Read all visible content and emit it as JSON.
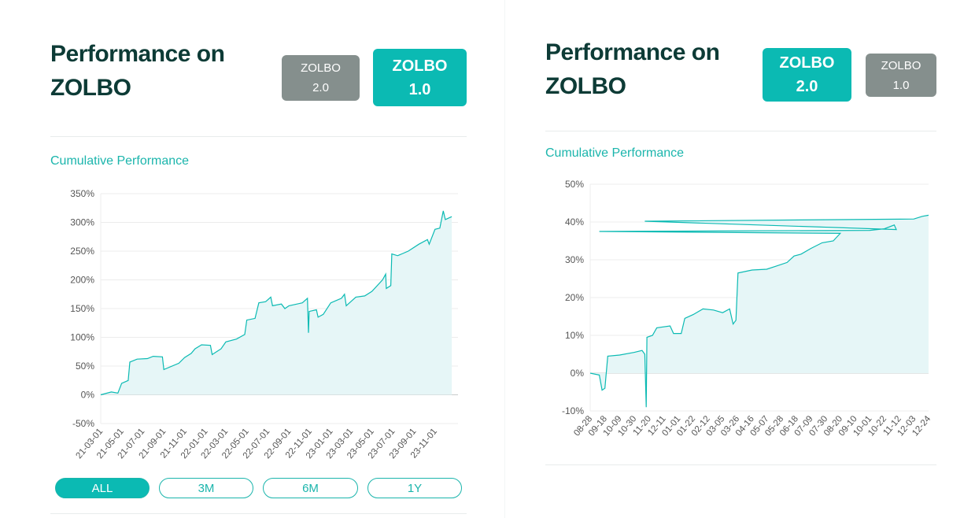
{
  "colors": {
    "accent": "#0bbab3",
    "inactive": "#858f8d",
    "title": "#0d3b36",
    "fill": "#e6f6f7"
  },
  "left": {
    "title_line1": "Performance on",
    "title_line2": "ZOLBO",
    "buttons": [
      {
        "line1": "ZOLBO",
        "line2": "2.0",
        "active": false
      },
      {
        "line1": "ZOLBO",
        "line2": "1.0",
        "active": true
      }
    ],
    "subtitle": "Cumulative Performance",
    "ranges": [
      {
        "label": "ALL",
        "active": true
      },
      {
        "label": "3M",
        "active": false
      },
      {
        "label": "6M",
        "active": false
      },
      {
        "label": "1Y",
        "active": false
      }
    ]
  },
  "right": {
    "title_line1": "Performance on",
    "title_line2": "ZOLBO",
    "buttons": [
      {
        "line1": "ZOLBO",
        "line2": "2.0",
        "active": true
      },
      {
        "line1": "ZOLBO",
        "line2": "1.0",
        "active": false
      }
    ],
    "subtitle": "Cumulative Performance"
  },
  "chart_data": [
    {
      "type": "area",
      "ylim": [
        -50,
        350
      ],
      "yticks": [
        "350%",
        "300%",
        "250%",
        "200%",
        "150%",
        "100%",
        "50%",
        "0%",
        "-50%"
      ],
      "ytick_values": [
        350,
        300,
        250,
        200,
        150,
        100,
        50,
        0,
        -50
      ],
      "xticks": [
        "21-03-01",
        "21-05-01",
        "21-07-01",
        "21-09-01",
        "21-11-01",
        "22-01-01",
        "22-03-01",
        "22-05-01",
        "22-07-01",
        "22-09-01",
        "22-11-01",
        "23-01-01",
        "23-03-01",
        "23-05-01",
        "23-07-01",
        "23-09-01",
        "23-11-01"
      ],
      "x_end": "23-12-20",
      "grid": true,
      "points": [
        [
          "21-03-01",
          0
        ],
        [
          "21-04-01",
          5
        ],
        [
          "21-04-20",
          3
        ],
        [
          "21-05-01",
          20
        ],
        [
          "21-05-20",
          25
        ],
        [
          "21-05-25",
          57
        ],
        [
          "21-06-15",
          62
        ],
        [
          "21-07-15",
          63
        ],
        [
          "21-08-01",
          67
        ],
        [
          "21-08-28",
          66
        ],
        [
          "21-09-01",
          44
        ],
        [
          "21-10-15",
          55
        ],
        [
          "21-11-01",
          65
        ],
        [
          "21-11-20",
          72
        ],
        [
          "21-12-01",
          80
        ],
        [
          "21-12-20",
          87
        ],
        [
          "22-01-15",
          86
        ],
        [
          "22-01-20",
          70
        ],
        [
          "22-02-15",
          80
        ],
        [
          "22-03-01",
          92
        ],
        [
          "22-04-01",
          97
        ],
        [
          "22-04-25",
          105
        ],
        [
          "22-05-01",
          130
        ],
        [
          "22-05-25",
          133
        ],
        [
          "22-06-05",
          160
        ],
        [
          "22-06-25",
          162
        ],
        [
          "22-07-10",
          170
        ],
        [
          "22-07-15",
          155
        ],
        [
          "22-08-10",
          158
        ],
        [
          "22-08-20",
          150
        ],
        [
          "22-09-01",
          155
        ],
        [
          "22-10-10",
          160
        ],
        [
          "22-10-25",
          168
        ],
        [
          "22-10-28",
          108
        ],
        [
          "22-10-30",
          145
        ],
        [
          "22-11-20",
          148
        ],
        [
          "22-11-25",
          135
        ],
        [
          "22-12-10",
          140
        ],
        [
          "23-01-01",
          160
        ],
        [
          "23-02-01",
          168
        ],
        [
          "23-02-10",
          175
        ],
        [
          "23-02-15",
          155
        ],
        [
          "23-03-15",
          170
        ],
        [
          "23-04-10",
          172
        ],
        [
          "23-05-01",
          180
        ],
        [
          "23-06-01",
          200
        ],
        [
          "23-06-10",
          210
        ],
        [
          "23-06-12",
          185
        ],
        [
          "23-06-25",
          190
        ],
        [
          "23-06-28",
          245
        ],
        [
          "23-07-15",
          242
        ],
        [
          "23-08-15",
          250
        ],
        [
          "23-09-15",
          262
        ],
        [
          "23-10-10",
          270
        ],
        [
          "23-10-15",
          262
        ],
        [
          "23-11-01",
          288
        ],
        [
          "23-11-15",
          290
        ],
        [
          "23-11-25",
          320
        ],
        [
          "23-12-01",
          305
        ],
        [
          "23-12-20",
          310
        ]
      ]
    },
    {
      "type": "area",
      "ylim": [
        -10,
        50
      ],
      "yticks": [
        "50%",
        "40%",
        "30%",
        "20%",
        "10%",
        "0%",
        "-10%"
      ],
      "ytick_values": [
        50,
        40,
        30,
        20,
        10,
        0,
        -10
      ],
      "xticks": [
        "08-28",
        "09-18",
        "10-09",
        "10-30",
        "11-20",
        "12-11",
        "01-01",
        "01-22",
        "02-12",
        "03-05",
        "03-26",
        "04-16",
        "05-07",
        "05-28",
        "06-18",
        "07-09",
        "07-30",
        "08-20",
        "09-10",
        "10-01",
        "10-22",
        "11-12",
        "12-03",
        "12-24"
      ],
      "grid": true,
      "points": [
        [
          "08-28",
          0
        ],
        [
          "09-10",
          -0.5
        ],
        [
          "09-14",
          -4.5
        ],
        [
          "09-18",
          -4
        ],
        [
          "09-22",
          4.5
        ],
        [
          "10-09",
          4.8
        ],
        [
          "10-30",
          5.5
        ],
        [
          "11-10",
          6
        ],
        [
          "11-14",
          5
        ],
        [
          "11-16",
          -9
        ],
        [
          "11-17",
          9.5
        ],
        [
          "11-25",
          10
        ],
        [
          "12-01",
          12
        ],
        [
          "12-20",
          12.5
        ],
        [
          "12-25",
          10.5
        ],
        [
          "01-05",
          10.5
        ],
        [
          "01-10",
          14.5
        ],
        [
          "01-22",
          15.5
        ],
        [
          "02-05",
          17
        ],
        [
          "02-20",
          16.7
        ],
        [
          "03-05",
          16
        ],
        [
          "03-15",
          17
        ],
        [
          "03-20",
          13
        ],
        [
          "03-24",
          14
        ],
        [
          "03-27",
          26.5
        ],
        [
          "04-16",
          27.3
        ],
        [
          "05-07",
          27.5
        ],
        [
          "05-20",
          28.3
        ],
        [
          "06-05",
          29.3
        ],
        [
          "06-15",
          31
        ],
        [
          "06-25",
          31.5
        ],
        [
          "07-09",
          33
        ],
        [
          "07-25",
          34.5
        ],
        [
          "08-10",
          35
        ],
        [
          "08-20",
          37
        ],
        [
          "09-10",
          37.5
        ],
        [
          "10-01",
          37.8
        ],
        [
          "10-22",
          38.2
        ],
        [
          "11-05",
          39.2
        ],
        [
          "11-08",
          38
        ],
        [
          "11-14",
          40.2
        ],
        [
          "12-03",
          40.8
        ],
        [
          "12-15",
          41.5
        ],
        [
          "12-24",
          41.8
        ]
      ]
    }
  ]
}
